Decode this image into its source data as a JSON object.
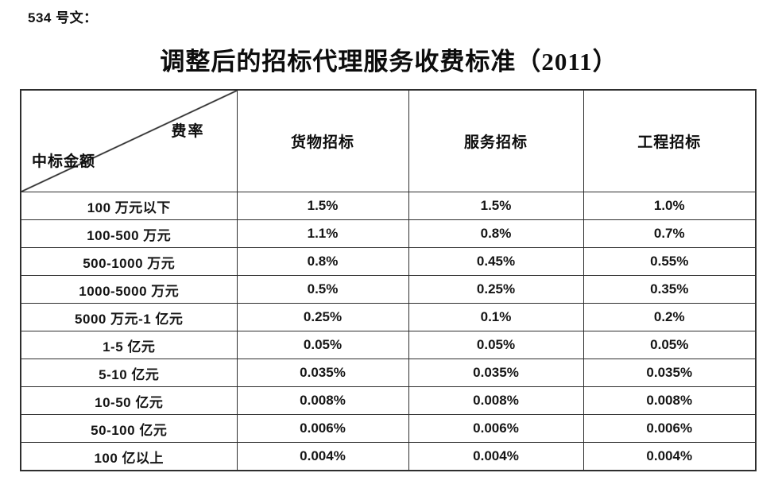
{
  "doc": {
    "ref_label": "534 号文：",
    "title": "调整后的招标代理服务收费标准（2011）"
  },
  "table": {
    "corner": {
      "top_right": "费率",
      "bottom_left": "中标金额"
    },
    "columns": [
      "货物招标",
      "服务招标",
      "工程招标"
    ],
    "rows": [
      {
        "label": "100 万元以下",
        "values": [
          "1.5%",
          "1.5%",
          "1.0%"
        ]
      },
      {
        "label": "100-500 万元",
        "values": [
          "1.1%",
          "0.8%",
          "0.7%"
        ]
      },
      {
        "label": "500-1000 万元",
        "values": [
          "0.8%",
          "0.45%",
          "0.55%"
        ]
      },
      {
        "label": "1000-5000 万元",
        "values": [
          "0.5%",
          "0.25%",
          "0.35%"
        ]
      },
      {
        "label": "5000 万元-1 亿元",
        "values": [
          "0.25%",
          "0.1%",
          "0.2%"
        ]
      },
      {
        "label": "1-5 亿元",
        "values": [
          "0.05%",
          "0.05%",
          "0.05%"
        ]
      },
      {
        "label": "5-10 亿元",
        "values": [
          "0.035%",
          "0.035%",
          "0.035%"
        ]
      },
      {
        "label": "10-50 亿元",
        "values": [
          "0.008%",
          "0.008%",
          "0.008%"
        ]
      },
      {
        "label": "50-100 亿元",
        "values": [
          "0.006%",
          "0.006%",
          "0.006%"
        ]
      },
      {
        "label": "100 亿以上",
        "values": [
          "0.004%",
          "0.004%",
          "0.004%"
        ]
      }
    ]
  },
  "colors": {
    "text": "#111111",
    "border": "#2e2e2e",
    "background": "#ffffff"
  }
}
